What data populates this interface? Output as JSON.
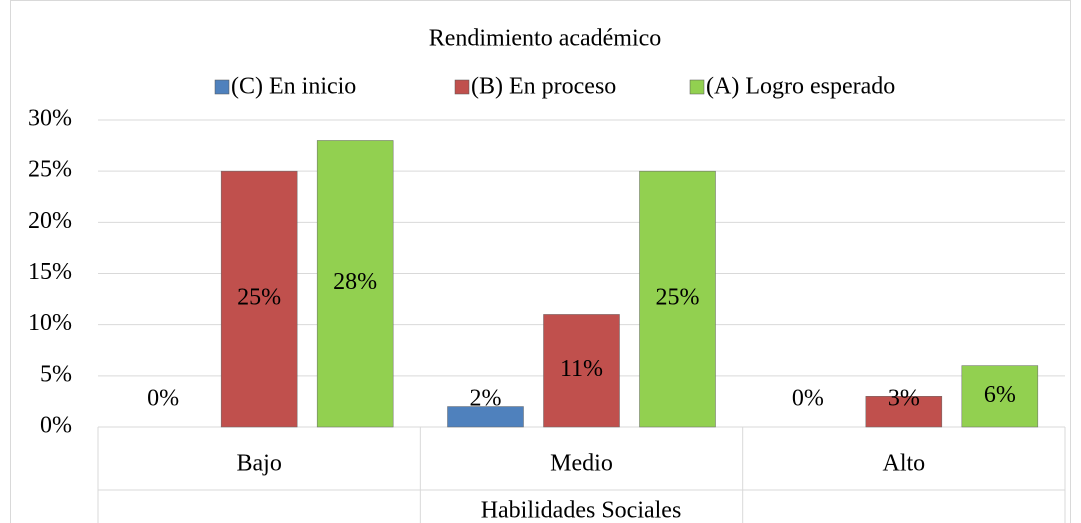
{
  "chart_data": {
    "type": "bar",
    "title": "Rendimiento académico",
    "x_label": "Habilidades Sociales",
    "categories": [
      "Bajo",
      "Medio",
      "Alto"
    ],
    "series": [
      {
        "name": "(C) En inicio",
        "color": "#4f81bd",
        "values": [
          0,
          2,
          0
        ],
        "value_labels": [
          "0%",
          "2%",
          "0%"
        ]
      },
      {
        "name": "(B) En proceso",
        "color": "#c0504d",
        "values": [
          25,
          11,
          3
        ],
        "value_labels": [
          "25%",
          "11%",
          "3%"
        ]
      },
      {
        "name": "(A) Logro esperado",
        "color": "#92d050",
        "values": [
          28,
          25,
          6
        ],
        "value_labels": [
          "28%",
          "25%",
          "6%"
        ]
      }
    ],
    "ylim": [
      0,
      30
    ],
    "yticks": [
      {
        "value": 0,
        "label": "0%"
      },
      {
        "value": 5,
        "label": "5%"
      },
      {
        "value": 10,
        "label": "10%"
      },
      {
        "value": 15,
        "label": "15%"
      },
      {
        "value": 20,
        "label": "20%"
      },
      {
        "value": 25,
        "label": "25%"
      },
      {
        "value": 30,
        "label": "30%"
      }
    ],
    "grid": true,
    "legend": "top"
  }
}
